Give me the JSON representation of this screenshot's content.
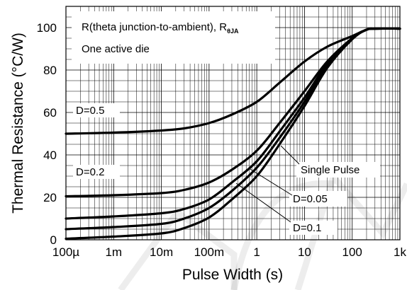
{
  "chart_data": {
    "type": "line",
    "xscale": "log",
    "xlim": [
      0.0001,
      1000
    ],
    "ylim": [
      0,
      110
    ],
    "grid": true,
    "xlabel": "Pulse Width (s)",
    "ylabel": "Thermal Resistance (°C/W)",
    "x_tick_values": [
      0.0001,
      0.001,
      0.01,
      0.1,
      1,
      10,
      100,
      1000
    ],
    "x_tick_labels": [
      "100µ",
      "1m",
      "10m",
      "100m",
      "1",
      "10",
      "100",
      "1k"
    ],
    "y_ticks": [
      0,
      20,
      40,
      60,
      80,
      100
    ],
    "title_lines": [
      "R(theta junction-to-ambient), R",
      "One active die"
    ],
    "title_subscript": "θJA",
    "series": [
      {
        "name": "D=0.5",
        "x": [
          0.0001,
          0.001,
          0.01,
          0.03,
          0.1,
          0.3,
          1,
          3,
          10,
          30,
          100,
          200,
          300,
          1000
        ],
        "y": [
          50,
          50.5,
          51.5,
          52.5,
          55,
          59,
          65,
          74,
          84,
          91,
          96,
          99,
          99.5,
          99.5
        ]
      },
      {
        "name": "D=0.2",
        "x": [
          0.0001,
          0.001,
          0.01,
          0.03,
          0.1,
          0.3,
          1,
          3,
          10,
          30,
          100,
          200,
          300,
          1000
        ],
        "y": [
          20.5,
          21,
          22,
          23.5,
          27,
          33,
          42,
          55,
          70,
          84,
          95,
          99,
          99.5,
          99.5
        ]
      },
      {
        "name": "Single Pulse",
        "x": [
          0.0001,
          0.001,
          0.01,
          0.03,
          0.1,
          0.3,
          1,
          3,
          10,
          30,
          100,
          200,
          300,
          1000
        ],
        "y": [
          10,
          11,
          12.5,
          14.5,
          19,
          27,
          37,
          51,
          67,
          83,
          95,
          99,
          99.5,
          99.5
        ]
      },
      {
        "name": "D=0.05",
        "x": [
          0.0001,
          0.001,
          0.01,
          0.03,
          0.1,
          0.3,
          1,
          3,
          10,
          30,
          100,
          200,
          300,
          1000
        ],
        "y": [
          5,
          6,
          7.5,
          10,
          15,
          23,
          34,
          48,
          65,
          82,
          95,
          99,
          99.5,
          99.5
        ]
      },
      {
        "name": "D=0.1",
        "x": [
          0.0001,
          0.001,
          0.01,
          0.03,
          0.1,
          0.3,
          1,
          3,
          10,
          30,
          100,
          200,
          300,
          1000
        ],
        "y": [
          0.5,
          1.5,
          3,
          5.5,
          10.5,
          19,
          30,
          45,
          63,
          81,
          94.5,
          99,
          99.5,
          99.5
        ]
      }
    ],
    "labels": {
      "d05": "D=0.5",
      "d02": "D=0.2",
      "single": "Single Pulse",
      "d005": "D=0.05",
      "d01": "D=0.1"
    }
  }
}
